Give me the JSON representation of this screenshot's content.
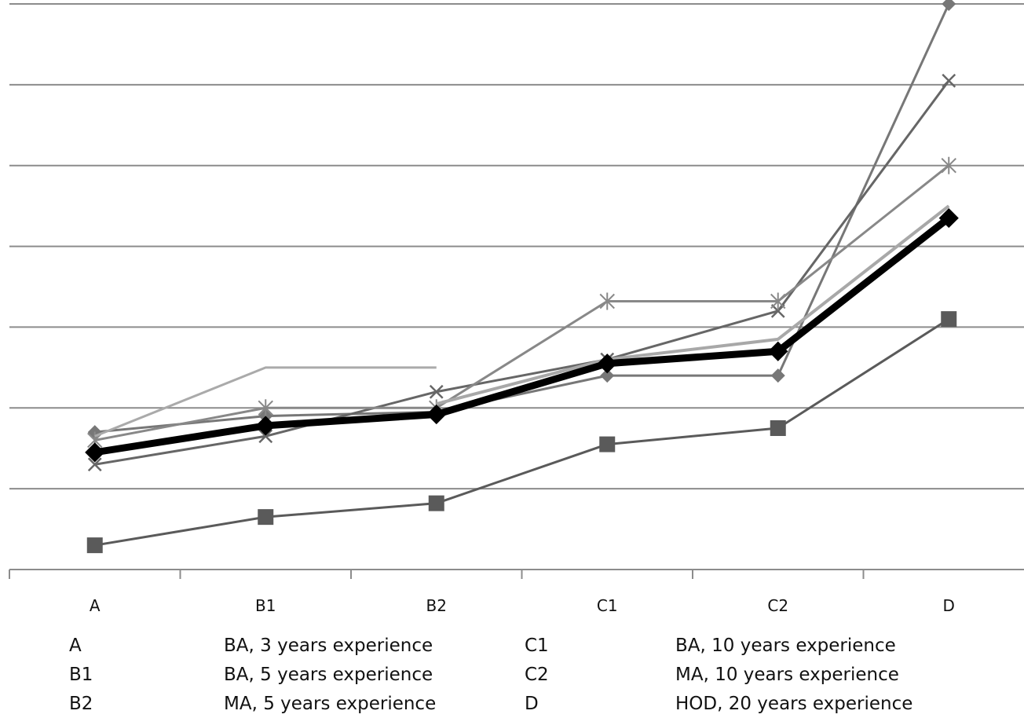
{
  "chart_data": {
    "type": "line",
    "categories": [
      "A",
      "B1",
      "B2",
      "C1",
      "C2",
      "D"
    ],
    "ylim": [
      0,
      7
    ],
    "grid": true,
    "series": [
      {
        "color": "#5a5a5a",
        "marker": "square",
        "width": 3,
        "values": [
          0.3,
          0.65,
          0.82,
          1.55,
          1.75,
          3.1
        ]
      },
      {
        "color": "#777777",
        "marker": "diamond",
        "width": 3,
        "values": [
          1.7,
          1.9,
          1.95,
          2.4,
          2.4,
          7.0
        ]
      },
      {
        "color": "#666666",
        "marker": "x",
        "width": 3,
        "values": [
          1.3,
          1.65,
          2.2,
          2.6,
          3.2,
          6.05
        ]
      },
      {
        "color": "#888888",
        "marker": "star",
        "width": 3,
        "values": [
          1.6,
          2.0,
          2.0,
          3.32,
          3.32,
          5.0
        ]
      },
      {
        "color": "#aaaaaa",
        "marker": "none",
        "width": 3,
        "values": [
          1.65,
          2.5,
          2.5,
          null,
          null,
          null
        ]
      },
      {
        "color": "#a8a8a8",
        "marker": "none",
        "width": 4,
        "values": [
          null,
          null,
          2.05,
          2.6,
          2.85,
          4.5
        ]
      },
      {
        "color": "#000000",
        "marker": "diamond",
        "width": 9,
        "values": [
          1.45,
          1.78,
          1.92,
          2.55,
          2.7,
          4.35
        ]
      }
    ]
  },
  "legend": {
    "rows": [
      {
        "code1": "A",
        "desc1": "BA, 3 years experience",
        "code2": "C1",
        "desc2": "BA, 10 years experience"
      },
      {
        "code1": "B1",
        "desc1": "BA, 5 years experience",
        "code2": "C2",
        "desc2": "MA, 10 years experience"
      },
      {
        "code1": "B2",
        "desc1": "MA, 5 years experience",
        "code2": "D",
        "desc2": "HOD, 20 years experience"
      }
    ]
  }
}
